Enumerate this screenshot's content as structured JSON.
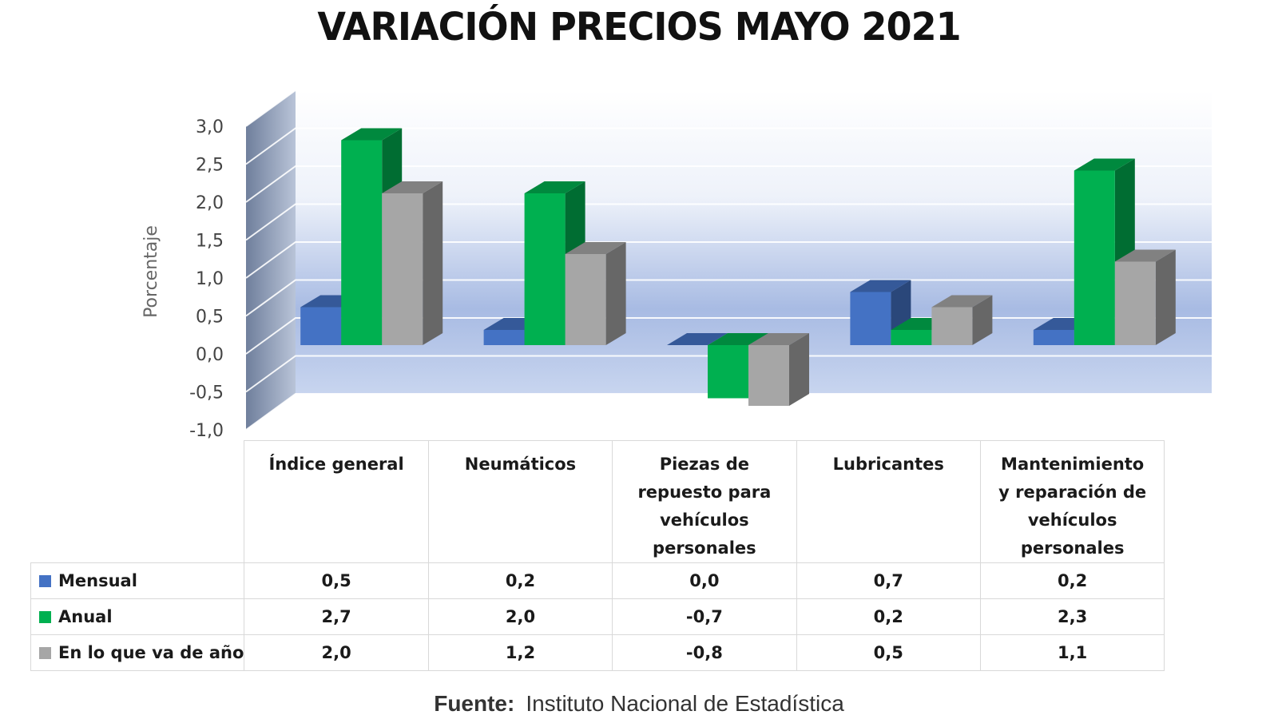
{
  "title": "VARIACIÓN PRECIOS MAYO 2021",
  "source_label": "Fuente:",
  "source_text": "Instituto Nacional de Estadística",
  "chart_data": {
    "type": "bar",
    "style": "3d-clustered-column-with-data-table",
    "title": "VARIACIÓN PRECIOS MAYO 2021",
    "ylabel": "Porcentaje",
    "xlabel": "",
    "ylim": [
      -1.0,
      3.0
    ],
    "yticks": [
      "3,0",
      "2,5",
      "2,0",
      "1,5",
      "1,0",
      "0,5",
      "0,0",
      "-0,5",
      "-1,0"
    ],
    "grid": true,
    "categories": [
      "Índice general",
      "Neumáticos",
      "Piezas de repuesto para vehículos personales",
      "Lubricantes",
      "Mantenimiento y reparación de vehículos personales"
    ],
    "category_lines": [
      [
        "Índice general"
      ],
      [
        "Neumáticos"
      ],
      [
        "Piezas de",
        "repuesto para",
        "vehículos",
        "personales"
      ],
      [
        "Lubricantes"
      ],
      [
        "Mantenimiento",
        "y reparación de",
        "vehículos",
        "personales"
      ]
    ],
    "series": [
      {
        "name": "Mensual",
        "color": "#4472c4",
        "values": [
          0.5,
          0.2,
          0.0,
          0.7,
          0.2
        ],
        "labels": [
          "0,5",
          "0,2",
          "0,0",
          "0,7",
          "0,2"
        ]
      },
      {
        "name": "Anual",
        "color": "#00b050",
        "values": [
          2.7,
          2.0,
          -0.7,
          0.2,
          2.3
        ],
        "labels": [
          "2,7",
          "2,0",
          "-0,7",
          "0,2",
          "2,3"
        ]
      },
      {
        "name": "En lo que va de año",
        "color": "#a6a6a6",
        "values": [
          2.0,
          1.2,
          -0.8,
          0.5,
          1.1
        ],
        "labels": [
          "2,0",
          "1,2",
          "-0,8",
          "0,5",
          "1,1"
        ]
      }
    ]
  }
}
